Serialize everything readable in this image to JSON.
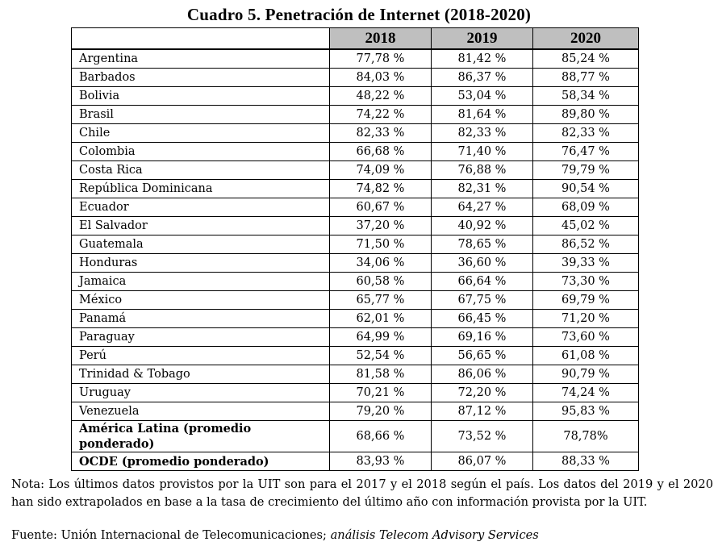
{
  "title": "Cuadro 5. Penetración de Internet (2018-2020)",
  "table": {
    "columns": [
      "",
      "2018",
      "2019",
      "2020"
    ],
    "rows": [
      {
        "country": "Argentina",
        "v2018": "77,78 %",
        "v2019": "81,42 %",
        "v2020": "85,24 %"
      },
      {
        "country": "Barbados",
        "v2018": "84,03 %",
        "v2019": "86,37 %",
        "v2020": "88,77 %"
      },
      {
        "country": "Bolivia",
        "v2018": "48,22 %",
        "v2019": "53,04 %",
        "v2020": "58,34 %"
      },
      {
        "country": "Brasil",
        "v2018": "74,22 %",
        "v2019": "81,64 %",
        "v2020": "89,80 %"
      },
      {
        "country": "Chile",
        "v2018": "82,33 %",
        "v2019": "82,33 %",
        "v2020": "82,33 %"
      },
      {
        "country": "Colombia",
        "v2018": "66,68 %",
        "v2019": "71,40 %",
        "v2020": "76,47 %"
      },
      {
        "country": "Costa Rica",
        "v2018": "74,09 %",
        "v2019": "76,88 %",
        "v2020": "79,79 %"
      },
      {
        "country": "República Dominicana",
        "v2018": "74,82 %",
        "v2019": "82,31 %",
        "v2020": "90,54 %"
      },
      {
        "country": "Ecuador",
        "v2018": "60,67 %",
        "v2019": "64,27 %",
        "v2020": "68,09 %"
      },
      {
        "country": "El Salvador",
        "v2018": "37,20 %",
        "v2019": "40,92 %",
        "v2020": "45,02 %"
      },
      {
        "country": "Guatemala",
        "v2018": "71,50 %",
        "v2019": "78,65 %",
        "v2020": "86,52 %"
      },
      {
        "country": "Honduras",
        "v2018": "34,06 %",
        "v2019": "36,60 %",
        "v2020": "39,33 %"
      },
      {
        "country": "Jamaica",
        "v2018": "60,58 %",
        "v2019": "66,64 %",
        "v2020": "73,30 %"
      },
      {
        "country": "México",
        "v2018": "65,77 %",
        "v2019": "67,75 %",
        "v2020": "69,79 %"
      },
      {
        "country": "Panamá",
        "v2018": "62,01 %",
        "v2019": "66,45 %",
        "v2020": "71,20 %"
      },
      {
        "country": "Paraguay",
        "v2018": "64,99 %",
        "v2019": "69,16 %",
        "v2020": "73,60 %"
      },
      {
        "country": "Perú",
        "v2018": "52,54 %",
        "v2019": "56,65 %",
        "v2020": "61,08 %"
      },
      {
        "country": "Trinidad & Tobago",
        "v2018": "81,58 %",
        "v2019": "86,06 %",
        "v2020": "90,79 %"
      },
      {
        "country": "Uruguay",
        "v2018": "70,21 %",
        "v2019": "72,20 %",
        "v2020": "74,24 %"
      },
      {
        "country": "Venezuela",
        "v2018": "79,20 %",
        "v2019": "87,12 %",
        "v2020": "95,83 %"
      }
    ],
    "summary": [
      {
        "country": "América Latina (promedio ponderado)",
        "v2018": "68,66 %",
        "v2019": "73,52 %",
        "v2020": "78,78%"
      },
      {
        "country": "OCDE (promedio ponderado)",
        "v2018": "83,93 %",
        "v2019": "86,07 %",
        "v2020": "88,33 %"
      }
    ]
  },
  "note": "Nota: Los últimos datos provistos por la UIT son para el 2017 y el 2018 según el país. Los datos del 2019 y el 2020 han sido extrapolados en base a la tasa de crecimiento del último año con información provista por la UIT.",
  "source": {
    "prefix": "Fuente: Unión Internacional de Telecomunicaciones; ",
    "analysis": "análisis Telecom Advisory Services"
  },
  "colors": {
    "header_bg": "#bfbfbf",
    "border": "#000000"
  }
}
